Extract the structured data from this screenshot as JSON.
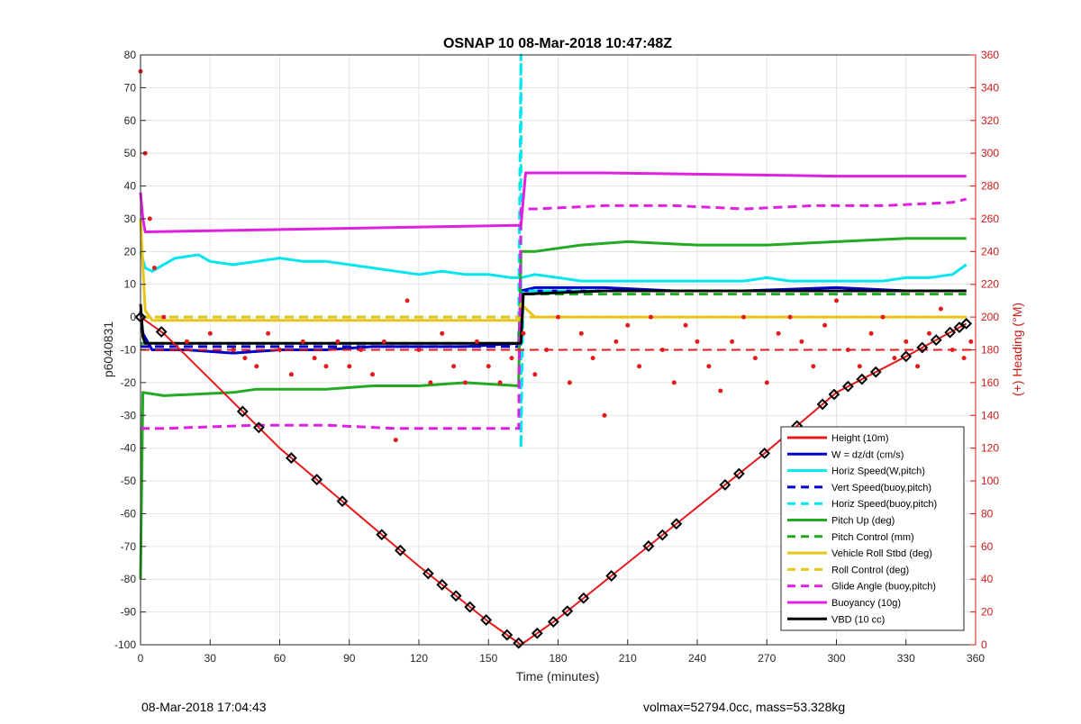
{
  "chart_data": {
    "type": "line",
    "title": "OSNAP 10 08-Mar-2018 10:47:48Z",
    "xlabel": "Time (minutes)",
    "ylabel": "p6040831",
    "ylabel_right": "(+) Heading (°M)",
    "xlim": [
      0,
      360
    ],
    "ylim": [
      -100,
      80
    ],
    "ylim_right": [
      0,
      360
    ],
    "x_ticks": [
      "0",
      "30",
      "60",
      "90",
      "120",
      "150",
      "180",
      "210",
      "240",
      "270",
      "300",
      "330",
      "360"
    ],
    "y_ticks": [
      "80",
      "70",
      "60",
      "50",
      "40",
      "30",
      "20",
      "10",
      "0",
      "-10",
      "-20",
      "-30",
      "-40",
      "-50",
      "-60",
      "-70",
      "-80",
      "-90",
      "-100"
    ],
    "y_ticks_right": [
      "360",
      "340",
      "320",
      "300",
      "280",
      "260",
      "240",
      "220",
      "200",
      "180",
      "160",
      "140",
      "120",
      "100",
      "80",
      "60",
      "40",
      "20",
      "0"
    ],
    "grid": true,
    "legend_position": "bottom-right",
    "series": [
      {
        "name": "Height (10m)",
        "color": "#e41a1c",
        "style": "solid",
        "x": [
          0,
          10,
          30,
          60,
          90,
          120,
          150,
          164,
          180,
          210,
          240,
          270,
          300,
          330,
          356
        ],
        "values": [
          0,
          -5,
          -19,
          -40,
          -58,
          -76,
          -93,
          -100,
          -92,
          -75,
          -58,
          -41,
          -23,
          -12,
          -2
        ]
      },
      {
        "name": "W = dz/dt (cm/s)",
        "color": "#0000cc",
        "style": "solid",
        "x": [
          0,
          1,
          5,
          20,
          40,
          60,
          80,
          100,
          120,
          140,
          163,
          164,
          170,
          200,
          230,
          260,
          300,
          330,
          356
        ],
        "values": [
          2,
          -5,
          -10,
          -10,
          -11,
          -10,
          -10,
          -9,
          -9,
          -9,
          -8,
          8,
          9,
          9,
          8,
          8,
          9,
          8,
          8
        ]
      },
      {
        "name": "Horiz Speed(W,pitch)",
        "color": "#00e5ee",
        "style": "solid",
        "x": [
          0,
          2,
          5,
          15,
          25,
          30,
          40,
          50,
          60,
          70,
          80,
          90,
          100,
          110,
          120,
          130,
          140,
          150,
          160,
          164,
          170,
          180,
          190,
          200,
          210,
          220,
          230,
          240,
          250,
          260,
          270,
          280,
          290,
          300,
          310,
          320,
          330,
          340,
          350,
          356
        ],
        "values": [
          20,
          15,
          14,
          18,
          19,
          17,
          16,
          17,
          18,
          17,
          17,
          16,
          15,
          14,
          13,
          14,
          13,
          13,
          12,
          12,
          13,
          12,
          11,
          11,
          11,
          11,
          11,
          11,
          11,
          11,
          12,
          11,
          11,
          11,
          11,
          11,
          12,
          12,
          13,
          16
        ]
      },
      {
        "name": "Vert Speed(buoy,pitch)",
        "color": "#0000cc",
        "style": "dashed",
        "x": [
          0,
          163,
          164,
          356
        ],
        "values": [
          -9,
          -9,
          8,
          8
        ]
      },
      {
        "name": "Horiz Speed(buoy,pitch)",
        "color": "#00e5ee",
        "style": "dashed",
        "x": [
          0,
          163,
          164,
          164,
          165,
          356
        ],
        "values": [
          0,
          0,
          80,
          -40,
          8,
          8
        ]
      },
      {
        "name": "Pitch Up (deg)",
        "color": "#22aa22",
        "style": "solid",
        "x": [
          0,
          1,
          10,
          40,
          50,
          80,
          100,
          120,
          140,
          163,
          164,
          170,
          190,
          210,
          240,
          270,
          300,
          330,
          356
        ],
        "values": [
          -80,
          -23,
          -24,
          -23,
          -22,
          -22,
          -21,
          -21,
          -20,
          -21,
          20,
          20,
          22,
          23,
          22,
          22,
          23,
          24,
          24
        ]
      },
      {
        "name": "Pitch Control (mm)",
        "color": "#22aa22",
        "style": "dashed",
        "x": [
          0,
          163,
          164,
          356
        ],
        "values": [
          -8,
          -8,
          7,
          7
        ]
      },
      {
        "name": "Vehicle Roll Stbd (deg)",
        "color": "#e6c619",
        "style": "solid",
        "x": [
          0,
          2,
          5,
          100,
          163,
          164,
          170,
          356
        ],
        "values": [
          30,
          2,
          -1,
          -1,
          -1,
          4,
          0,
          0
        ]
      },
      {
        "name": "Roll Control (deg)",
        "color": "#e6c619",
        "style": "dashed",
        "x": [
          0,
          2,
          5,
          163,
          164,
          356
        ],
        "values": [
          0,
          0,
          0,
          0,
          0,
          0
        ]
      },
      {
        "name": "Glide Angle (buoy,pitch)",
        "color": "#e020e0",
        "style": "dashed",
        "x": [
          0,
          10,
          50,
          80,
          110,
          140,
          163,
          164,
          170,
          200,
          230,
          260,
          290,
          320,
          350,
          356
        ],
        "values": [
          -34,
          -34,
          -33,
          -33,
          -34,
          -34,
          -34,
          33,
          33,
          34,
          34,
          33,
          34,
          34,
          35,
          36
        ]
      },
      {
        "name": "Buoyancy (10g)",
        "color": "#e020e0",
        "style": "solid",
        "x": [
          0,
          1,
          2,
          163,
          164,
          166,
          200,
          250,
          300,
          356
        ],
        "values": [
          38,
          30,
          26,
          28,
          28,
          44,
          44,
          43.5,
          43,
          43
        ]
      },
      {
        "name": "VBD (10 cc)",
        "color": "#000000",
        "style": "solid",
        "x": [
          0,
          1,
          2,
          163,
          164,
          165,
          200,
          250,
          300,
          356
        ],
        "values": [
          4,
          -6,
          -8,
          -8,
          -8,
          7,
          8,
          8,
          8,
          8
        ]
      }
    ],
    "heading_series": {
      "name": "Heading",
      "color": "#e41a1c",
      "axis": "right",
      "mean": 180,
      "x": [
        0,
        2,
        4,
        6,
        10,
        20,
        30,
        40,
        45,
        50,
        55,
        60,
        65,
        70,
        75,
        80,
        85,
        90,
        95,
        100,
        105,
        110,
        115,
        120,
        125,
        130,
        135,
        140,
        145,
        150,
        155,
        160,
        165,
        170,
        175,
        180,
        185,
        190,
        195,
        200,
        205,
        210,
        215,
        220,
        225,
        230,
        235,
        240,
        245,
        250,
        255,
        260,
        265,
        270,
        275,
        280,
        285,
        290,
        295,
        300,
        305,
        310,
        315,
        320,
        325,
        330,
        335,
        340,
        345,
        350,
        355,
        358
      ],
      "values": [
        350,
        300,
        260,
        230,
        200,
        185,
        190,
        180,
        175,
        170,
        190,
        180,
        165,
        185,
        175,
        170,
        185,
        170,
        180,
        165,
        185,
        125,
        210,
        180,
        160,
        190,
        170,
        160,
        185,
        170,
        160,
        175,
        190,
        165,
        180,
        200,
        160,
        190,
        175,
        140,
        185,
        195,
        170,
        200,
        180,
        160,
        195,
        185,
        170,
        155,
        185,
        200,
        175,
        160,
        190,
        200,
        185,
        170,
        195,
        210,
        180,
        170,
        190,
        200,
        175,
        185,
        170,
        190,
        205,
        180,
        175,
        185
      ]
    },
    "markers_x": [
      0,
      9,
      44,
      51,
      65,
      76,
      87,
      104,
      112,
      124,
      130,
      136,
      142,
      149,
      158,
      163,
      171,
      178,
      184,
      191,
      203,
      219,
      225,
      231,
      252,
      258,
      269,
      283,
      294,
      299,
      305,
      311,
      317,
      330,
      337,
      343,
      349,
      353,
      356
    ]
  },
  "footer": {
    "left": "08-Mar-2018 17:04:43",
    "right": "volmax=52794.0cc, mass=53.328kg"
  }
}
